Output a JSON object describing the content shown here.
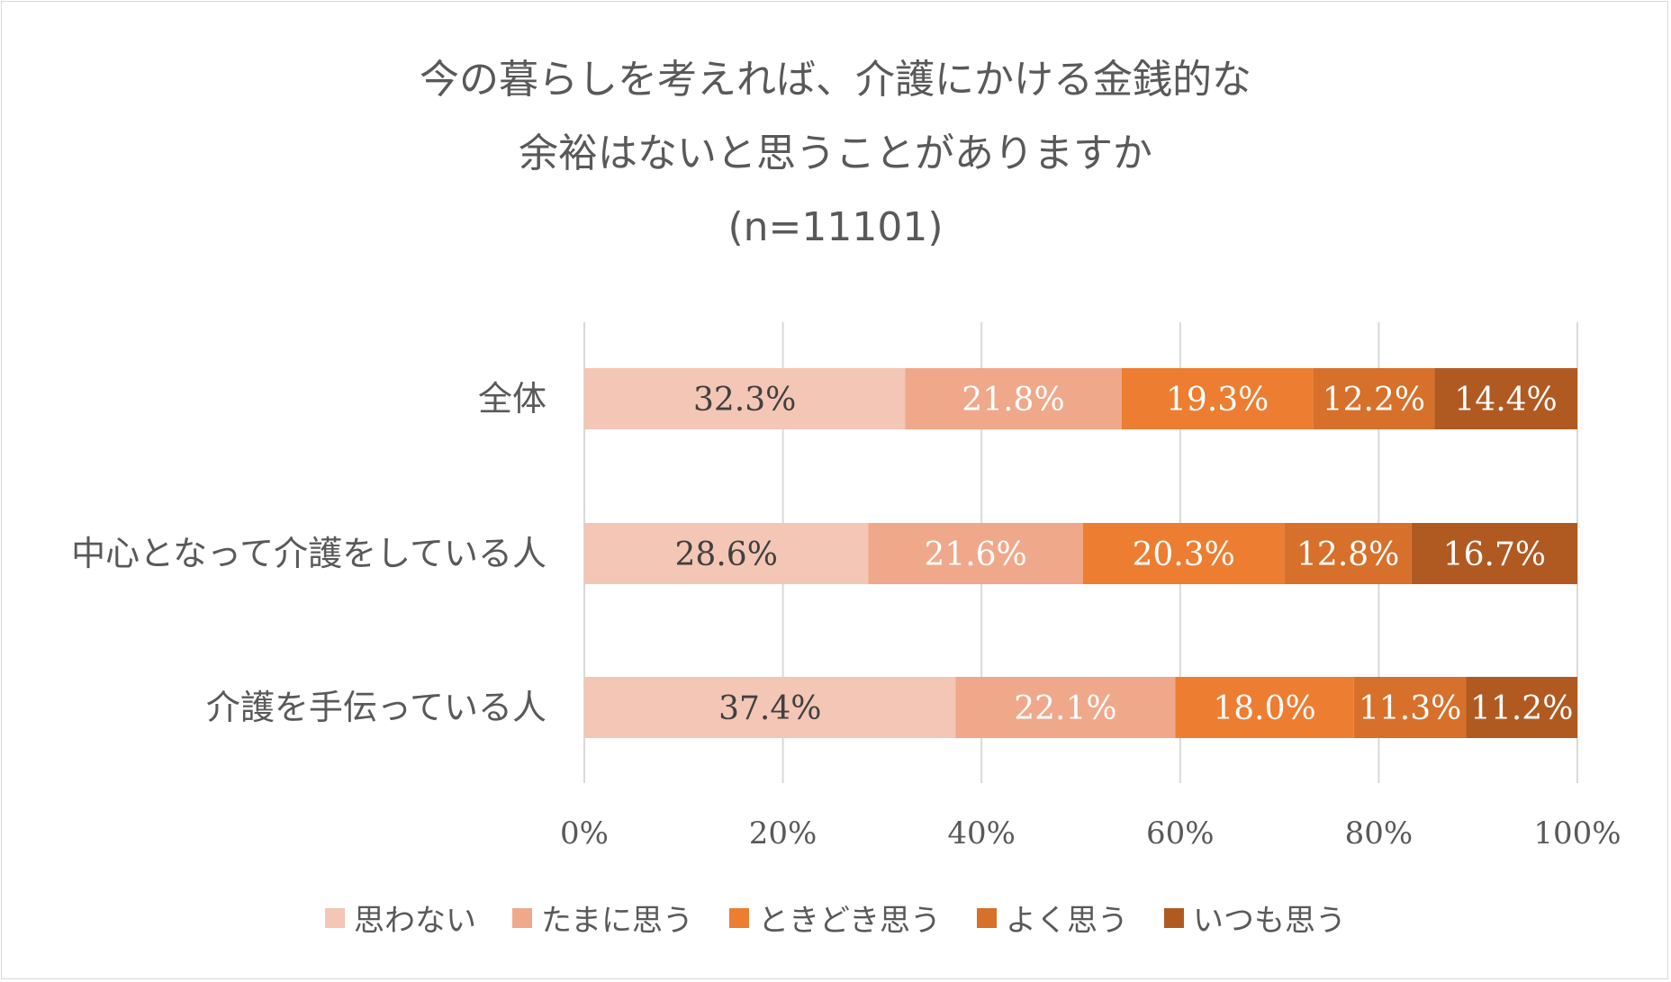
{
  "chart_data": {
    "type": "bar",
    "orientation": "horizontal",
    "stacked": true,
    "title_lines": [
      "今の暮らしを考えれば、介護にかける金銭的な",
      "余裕はないと思うことがありますか",
      "(n=11101)"
    ],
    "categories": [
      "全体",
      "中心となって介護をしている人",
      "介護を手伝っている人"
    ],
    "series": [
      {
        "name": "思わない",
        "color": "#f4c6b5",
        "label_color": "#404040",
        "values": [
          32.3,
          28.6,
          37.4
        ],
        "labels": [
          "32.3%",
          "28.6%",
          "37.4%"
        ]
      },
      {
        "name": "たまに思う",
        "color": "#f0a88a",
        "label_color": "#ffffff",
        "values": [
          21.8,
          21.6,
          22.1
        ],
        "labels": [
          "21.8%",
          "21.6%",
          "22.1%"
        ]
      },
      {
        "name": "ときどき思う",
        "color": "#ed7d31",
        "label_color": "#ffffff",
        "values": [
          19.3,
          20.3,
          18.0
        ],
        "labels": [
          "19.3%",
          "20.3%",
          "18.0%"
        ]
      },
      {
        "name": "よく思う",
        "color": "#d7702a",
        "label_color": "#ffffff",
        "values": [
          12.2,
          12.8,
          11.3
        ],
        "labels": [
          "12.2%",
          "12.8%",
          "11.3%"
        ]
      },
      {
        "name": "いつも思う",
        "color": "#b05a22",
        "label_color": "#ffffff",
        "values": [
          14.4,
          16.7,
          11.2
        ],
        "labels": [
          "14.4%",
          "16.7%",
          "11.2%"
        ]
      }
    ],
    "x_ticks": [
      "0%",
      "20%",
      "40%",
      "60%",
      "80%",
      "100%"
    ],
    "xlim": [
      0,
      100
    ],
    "grid": true,
    "legend_position": "bottom"
  }
}
